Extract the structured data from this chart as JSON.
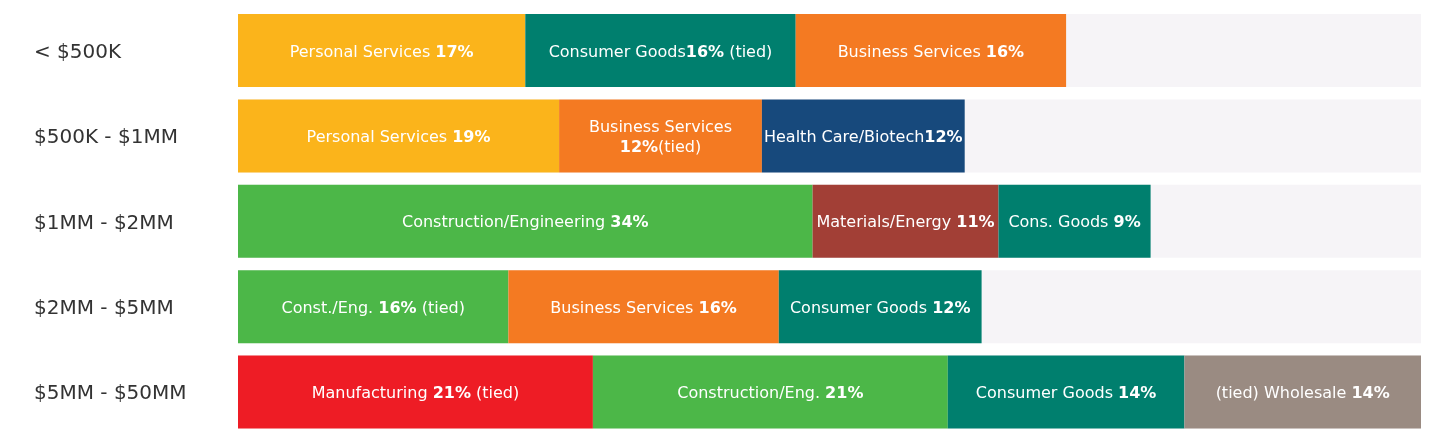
{
  "chart_data": {
    "type": "bar",
    "orientation": "horizontal",
    "stacked": true,
    "categories": [
      "< $500K",
      "$500K - $1MM",
      "$1MM - $2MM",
      "$2MM - $5MM",
      "$5MM - $50MM"
    ],
    "series": [
      {
        "colors": [
          "#fbb41b",
          "#fbb41b",
          "#4cb748",
          "#4cb748",
          "#ee1c25"
        ],
        "values": [
          17,
          19,
          34,
          16,
          21
        ],
        "value_labels": [
          "Personal Services  17%",
          "Personal Services 19%",
          "Construction/Engineering 34%",
          "Const./Eng.  16%  (tied)",
          "Manufacturing  21%  (tied)"
        ]
      },
      {
        "colors": [
          "#007f6e",
          "#f47a22",
          "#a23f36",
          "#f47a22",
          "#4cb748"
        ],
        "values": [
          16,
          12,
          11,
          16,
          21
        ],
        "value_labels": [
          "Consumer Goods16% (tied)",
          "Business Services 12%(tied)",
          "Materials/Energy 11%",
          "Business Services 16%",
          "Construction/Eng. 21%"
        ]
      },
      {
        "colors": [
          "#f47a22",
          "#17497c",
          "#007f6e",
          "#007f6e",
          "#007f6e"
        ],
        "values": [
          16,
          12,
          9,
          12,
          14
        ],
        "value_labels": [
          "Business Services 16%",
          "Health Care/Biotech12%",
          "Cons. Goods 9%",
          "Consumer Goods 12%",
          "Consumer Goods 14%"
        ]
      },
      {
        "colors": [
          null,
          null,
          null,
          null,
          "#9a8b82"
        ],
        "values": [
          null,
          null,
          null,
          null,
          14
        ],
        "value_labels": [
          null,
          null,
          null,
          null,
          "(tied) Wholesale 14%"
        ]
      }
    ]
  }
}
